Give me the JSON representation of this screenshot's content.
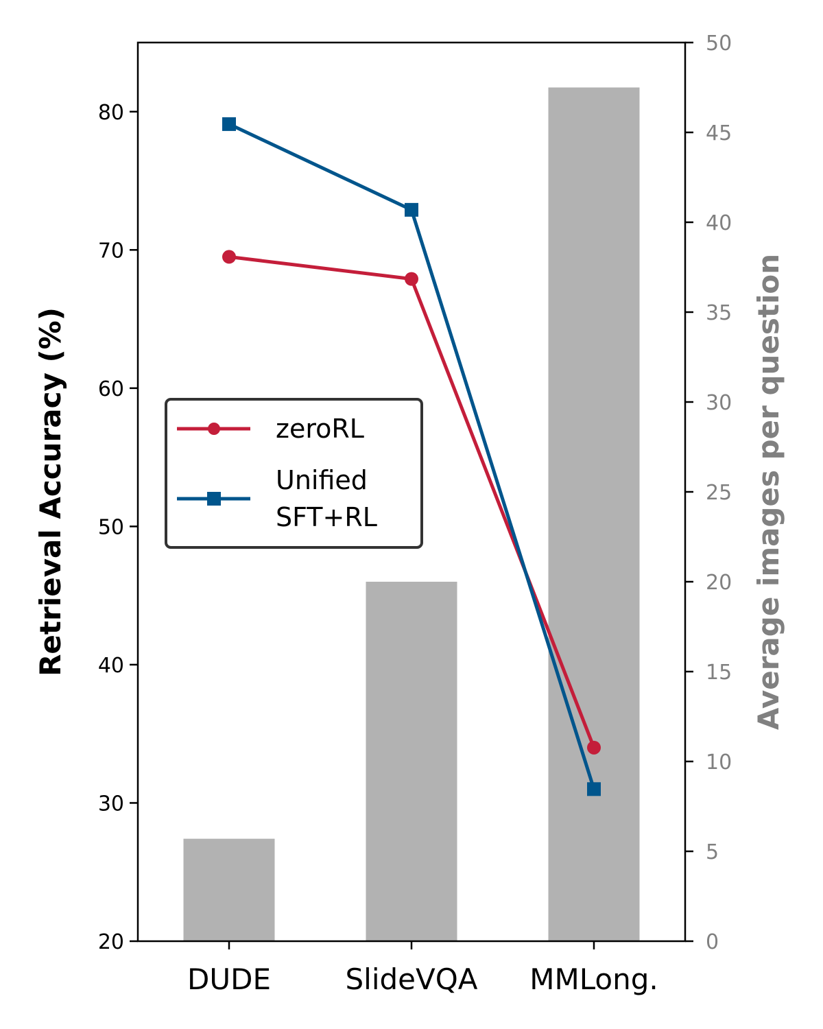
{
  "chart_data": {
    "type": "bar",
    "categories": [
      "DUDE",
      "SlideVQA",
      "MMLong."
    ],
    "ylabel": "Retrieval Accuracy (%)",
    "ylabel_right": "Average images per question",
    "ylim": [
      20,
      85
    ],
    "ylim_right": [
      0,
      50
    ],
    "yticks": [
      20,
      30,
      40,
      50,
      60,
      70,
      80
    ],
    "yticks_right": [
      0,
      5,
      10,
      15,
      20,
      25,
      30,
      35,
      40,
      45,
      50
    ],
    "bars": {
      "axis": "right",
      "color": "#b2b2b2",
      "values": [
        5.7,
        20.0,
        47.5
      ]
    },
    "series": [
      {
        "name": "zeroRL",
        "values": [
          69.5,
          67.9,
          34.0
        ],
        "color": "#c41e3a",
        "marker": "circle",
        "axis": "left"
      },
      {
        "name": "Unified\nSFT+RL",
        "values": [
          79.1,
          72.9,
          31.0
        ],
        "color": "#00558c",
        "marker": "square",
        "axis": "left"
      }
    ],
    "legend_position": "center-left",
    "grid": false
  }
}
